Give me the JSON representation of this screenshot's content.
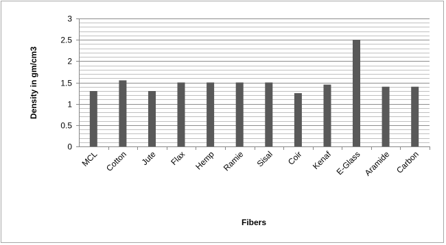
{
  "chart_data": {
    "type": "bar",
    "title": "",
    "xlabel": "Fibers",
    "ylabel": "Density in gm/cm3",
    "categories": [
      "MCL",
      "Cotton",
      "Jute",
      "Flax",
      "Hemp",
      "Ramie",
      "Sisal",
      "Coir",
      "Kenaf",
      "E-Glass",
      "Aramide",
      "Carbon"
    ],
    "values": [
      1.3,
      1.55,
      1.3,
      1.5,
      1.5,
      1.5,
      1.5,
      1.25,
      1.45,
      2.5,
      1.4,
      1.4
    ],
    "ylim": [
      0,
      3
    ],
    "y_ticks": [
      "0",
      "0.5",
      "1",
      "1.5",
      "2",
      "2.5",
      "3"
    ],
    "grid": true,
    "legend": "none",
    "bar_color": "#595959"
  }
}
